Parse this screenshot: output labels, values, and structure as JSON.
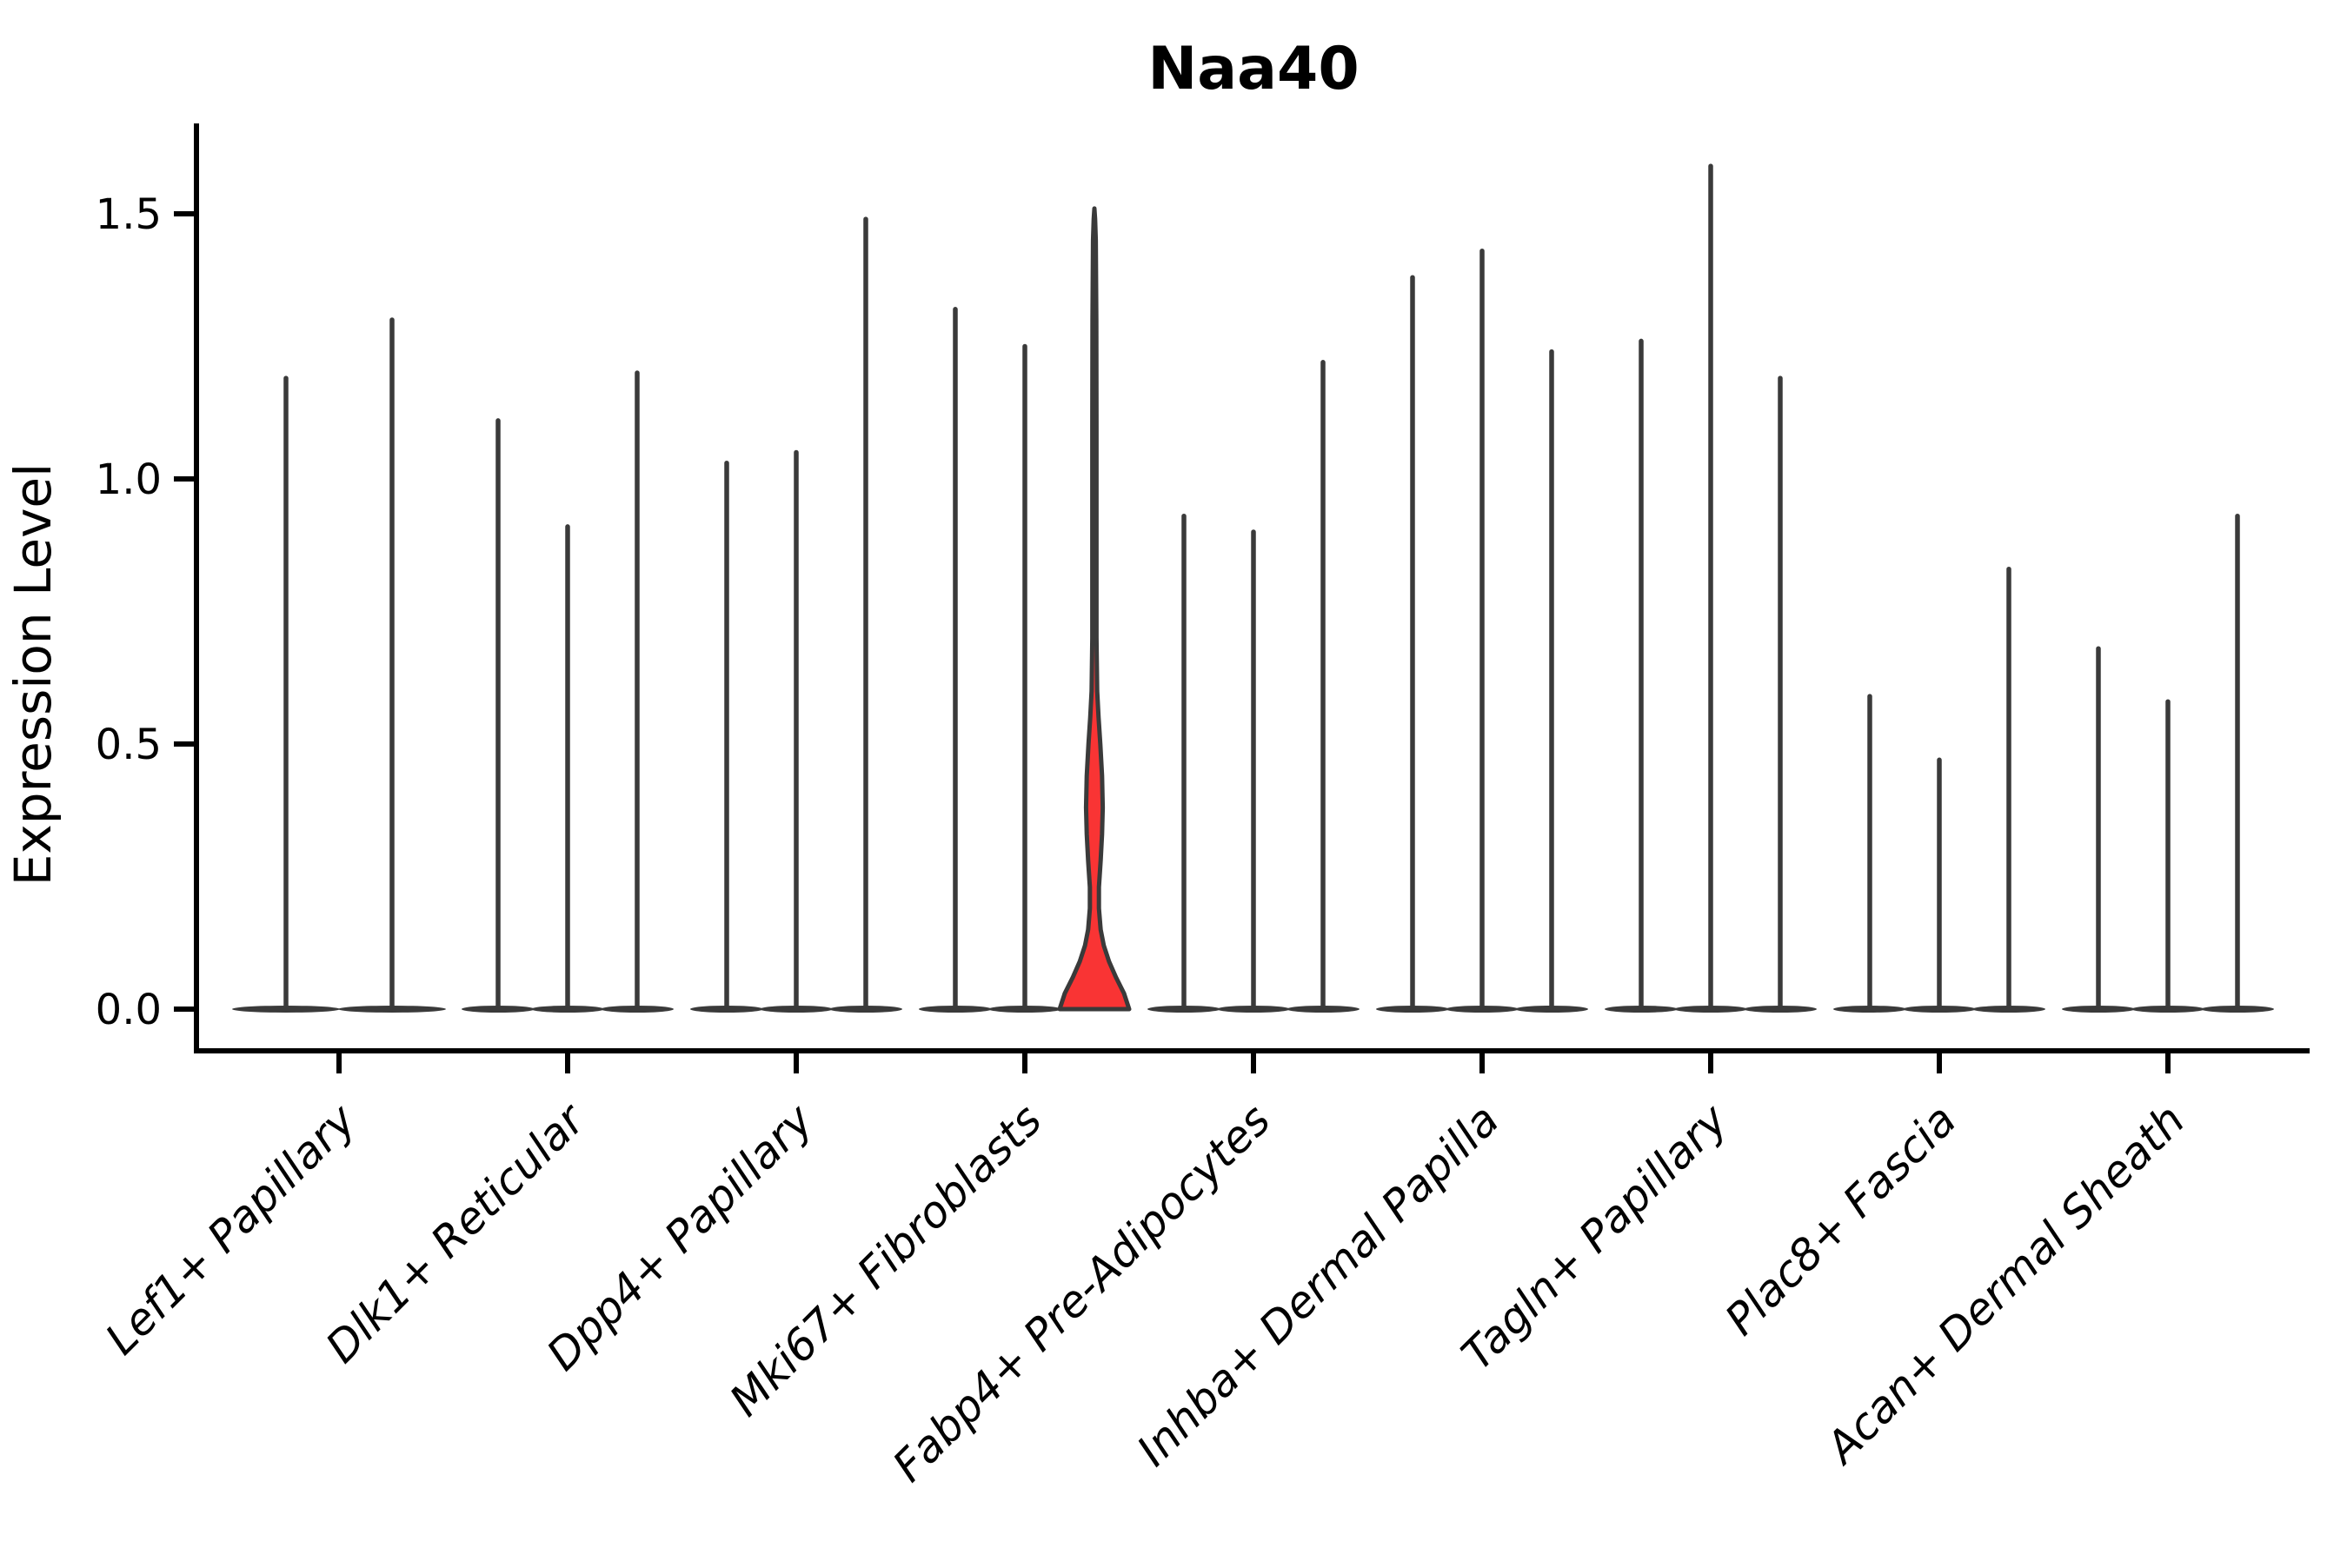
{
  "chart_data": {
    "type": "violin",
    "title": "Naa40",
    "xlabel": "",
    "ylabel": "Expression Level",
    "ylim": [
      -0.08,
      1.67
    ],
    "yticks": [
      0.0,
      0.5,
      1.0,
      1.5
    ],
    "ytick_labels": [
      "0.0",
      "0.5",
      "1.0",
      "1.5"
    ],
    "grid": false,
    "legend_position": "none",
    "categories": [
      "Lef1+ Papillary",
      "Dlk1+ Reticular",
      "Dpp4+ Papillary",
      "Mki67+ Fibroblasts",
      "Fabp4+ Pre-Adipocytes",
      "Inhba+ Dermal Papilla",
      "Tagln+ Papillary",
      "Plac8+ Fascia",
      "Acan+ Dermal Sheath"
    ],
    "groups": [
      {
        "category": "Lef1+ Papillary",
        "violins": [
          {
            "max": 1.19
          },
          {
            "max": 1.3
          }
        ]
      },
      {
        "category": "Dlk1+ Reticular",
        "violins": [
          {
            "max": 1.11
          },
          {
            "max": 0.91
          },
          {
            "max": 1.2
          }
        ]
      },
      {
        "category": "Dpp4+ Papillary",
        "violins": [
          {
            "max": 1.03
          },
          {
            "max": 1.05
          },
          {
            "max": 1.49
          }
        ]
      },
      {
        "category": "Mki67+ Fibroblasts",
        "violins": [
          {
            "max": 1.32
          },
          {
            "max": 1.25
          },
          {
            "max": 1.51,
            "highlighted": true
          }
        ]
      },
      {
        "category": "Fabp4+ Pre-Adipocytes",
        "violins": [
          {
            "max": 0.93
          },
          {
            "max": 0.9
          },
          {
            "max": 1.22
          }
        ]
      },
      {
        "category": "Inhba+ Dermal Papilla",
        "violins": [
          {
            "max": 1.38
          },
          {
            "max": 1.43
          },
          {
            "max": 1.24
          }
        ]
      },
      {
        "category": "Tagln+ Papillary",
        "violins": [
          {
            "max": 1.26
          },
          {
            "max": 1.59
          },
          {
            "max": 1.19
          }
        ]
      },
      {
        "category": "Plac8+ Fascia",
        "violins": [
          {
            "max": 0.59
          },
          {
            "max": 0.47
          },
          {
            "max": 0.83
          }
        ]
      },
      {
        "category": "Acan+ Dermal Sheath",
        "violins": [
          {
            "max": 0.68
          },
          {
            "max": 0.58
          },
          {
            "max": 0.93
          }
        ]
      }
    ],
    "highlighted_violin": {
      "category": "Mki67+ Fibroblasts",
      "max": 1.51,
      "density_profile": [
        [
          0.0,
          1.0
        ],
        [
          0.03,
          0.85
        ],
        [
          0.06,
          0.62
        ],
        [
          0.09,
          0.42
        ],
        [
          0.12,
          0.27
        ],
        [
          0.15,
          0.18
        ],
        [
          0.19,
          0.13
        ],
        [
          0.23,
          0.13
        ],
        [
          0.28,
          0.18
        ],
        [
          0.33,
          0.22
        ],
        [
          0.38,
          0.24
        ],
        [
          0.44,
          0.22
        ],
        [
          0.5,
          0.17
        ],
        [
          0.55,
          0.12
        ],
        [
          0.6,
          0.08
        ],
        [
          0.7,
          0.06
        ],
        [
          0.9,
          0.06
        ],
        [
          1.1,
          0.06
        ],
        [
          1.3,
          0.055
        ],
        [
          1.45,
          0.04
        ],
        [
          1.49,
          0.02
        ],
        [
          1.51,
          0.0
        ]
      ]
    },
    "colors": {
      "violin_stroke": "#3a3a3a",
      "highlight_fill": "#f93434",
      "axis": "#000000",
      "text": "#000000",
      "background": "#ffffff"
    }
  }
}
